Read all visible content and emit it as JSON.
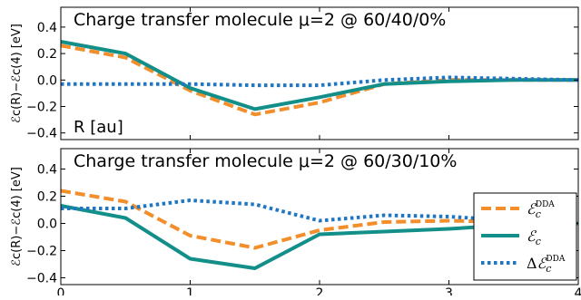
{
  "chart_data": [
    {
      "type": "line",
      "title": "Charge transfer molecule μ=2 @ 60/40/0%",
      "ylabel": "ℰc(R)−ℰc(4) [eV]",
      "inset_label": "R [au]",
      "xlim": [
        0,
        4
      ],
      "ylim": [
        -0.45,
        0.55
      ],
      "yticks": [
        "0.4",
        "0.2",
        "0.0",
        "−0.2",
        "−0.4"
      ],
      "ytick_values": [
        0.4,
        0.2,
        0.0,
        -0.2,
        -0.4
      ],
      "grid": false,
      "series": [
        {
          "name": "ℰc^DDA",
          "style": "dashed",
          "color": "#f28e2b",
          "x": [
            0,
            0.5,
            1,
            1.5,
            2,
            2.5,
            3,
            3.5,
            4
          ],
          "y": [
            0.26,
            0.17,
            -0.08,
            -0.26,
            -0.17,
            -0.03,
            0.0,
            0.0,
            0.0
          ]
        },
        {
          "name": "ℰc",
          "style": "solid",
          "color": "#138f8a",
          "x": [
            0,
            0.5,
            1,
            1.5,
            2,
            2.5,
            3,
            3.5,
            4
          ],
          "y": [
            0.29,
            0.2,
            -0.06,
            -0.22,
            -0.13,
            -0.03,
            -0.01,
            0.0,
            0.0
          ]
        },
        {
          "name": "Δℰc^DDA",
          "style": "dotted",
          "color": "#1f77c4",
          "x": [
            0,
            0.5,
            1,
            1.5,
            2,
            2.5,
            3,
            3.5,
            4
          ],
          "y": [
            -0.03,
            -0.03,
            -0.03,
            -0.04,
            -0.04,
            0.0,
            0.02,
            0.01,
            0.0
          ]
        }
      ]
    },
    {
      "type": "line",
      "title": "Charge transfer molecule μ=2 @ 60/30/10%",
      "ylabel": "ℰc(R)−ℰc(4) [eV]",
      "xlabel": "",
      "xlim": [
        0,
        4
      ],
      "ylim": [
        -0.45,
        0.55
      ],
      "xticks": [
        "0",
        "1",
        "2",
        "3",
        "4"
      ],
      "xtick_values": [
        0,
        1,
        2,
        3,
        4
      ],
      "yticks": [
        "0.4",
        "0.2",
        "0.0",
        "−0.2",
        "−0.4"
      ],
      "ytick_values": [
        0.4,
        0.2,
        0.0,
        -0.2,
        -0.4
      ],
      "grid": false,
      "legend_position": "lower-right",
      "series": [
        {
          "name": "ℰc^DDA",
          "style": "dashed",
          "color": "#f28e2b",
          "x": [
            0,
            0.5,
            1,
            1.5,
            2,
            2.5,
            3,
            3.5,
            4
          ],
          "y": [
            0.24,
            0.16,
            -0.09,
            -0.18,
            -0.05,
            0.01,
            0.02,
            0.01,
            0.0
          ]
        },
        {
          "name": "ℰc",
          "style": "solid",
          "color": "#138f8a",
          "x": [
            0,
            0.5,
            1,
            1.5,
            2,
            2.5,
            3,
            3.5,
            4
          ],
          "y": [
            0.13,
            0.04,
            -0.26,
            -0.33,
            -0.08,
            -0.06,
            -0.04,
            -0.01,
            0.0
          ]
        },
        {
          "name": "Δℰc^DDA",
          "style": "dotted",
          "color": "#1f77c4",
          "x": [
            0,
            0.5,
            1,
            1.5,
            2,
            2.5,
            3,
            3.5,
            4
          ],
          "y": [
            0.11,
            0.11,
            0.17,
            0.14,
            0.02,
            0.06,
            0.05,
            0.02,
            0.0
          ]
        }
      ],
      "legend": [
        {
          "base": "ℰ",
          "sub": "c",
          "sup": "DDA",
          "prefix": ""
        },
        {
          "base": "ℰ",
          "sub": "c",
          "sup": "",
          "prefix": ""
        },
        {
          "base": "ℰ",
          "sub": "c",
          "sup": "DDA",
          "prefix": "Δ"
        }
      ]
    }
  ]
}
